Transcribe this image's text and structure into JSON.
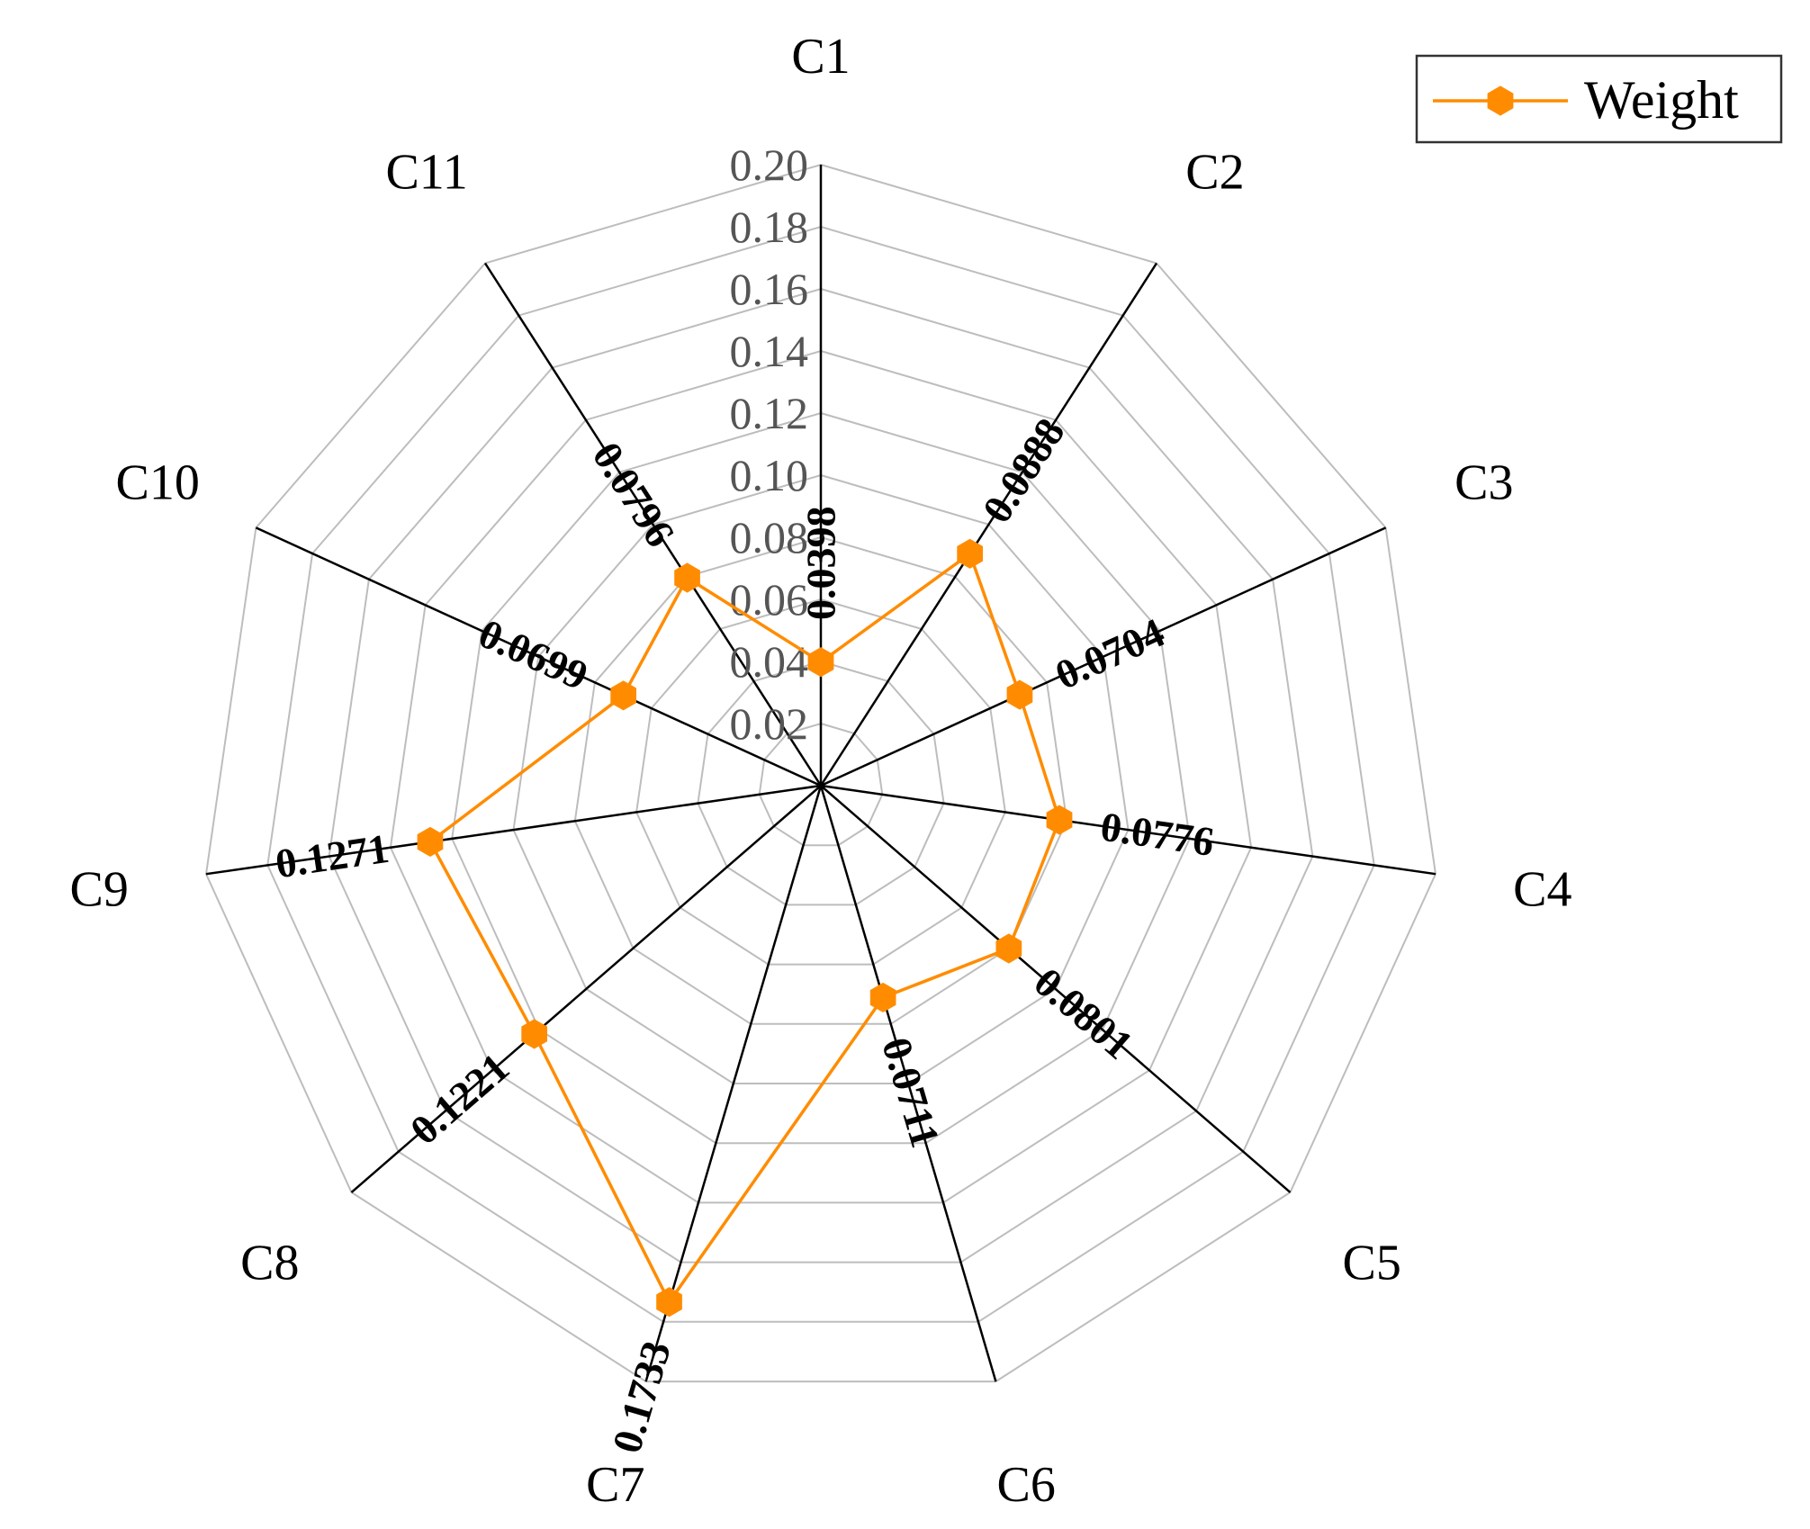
{
  "chart_data": {
    "type": "radar",
    "title": "",
    "categories": [
      "C1",
      "C2",
      "C3",
      "C4",
      "C5",
      "C6",
      "C7",
      "C8",
      "C9",
      "C10",
      "C11"
    ],
    "radial_range": [
      0.0,
      0.2
    ],
    "radial_ticks": [
      0.02,
      0.04,
      0.06,
      0.08,
      0.1,
      0.12,
      0.14,
      0.16,
      0.18,
      0.2
    ],
    "radial_tick_labels": [
      "0.02",
      "0.04",
      "0.06",
      "0.08",
      "0.10",
      "0.12",
      "0.14",
      "0.16",
      "0.18",
      "0.20"
    ],
    "grid": true,
    "legend": {
      "position": "top-right",
      "entries": [
        "Weight"
      ]
    },
    "series": [
      {
        "name": "Weight",
        "color": "#FF8C00",
        "values": [
          0.0398,
          0.0888,
          0.0704,
          0.0776,
          0.0801,
          0.0711,
          0.1733,
          0.1221,
          0.1271,
          0.0699,
          0.0796
        ],
        "value_labels": [
          "0.0398",
          "0.0888",
          "0.0704",
          "0.0776",
          "0.0801",
          "0.0711",
          "0.1733",
          "0.1221",
          "0.1271",
          "0.0699",
          "0.0796"
        ]
      }
    ]
  }
}
